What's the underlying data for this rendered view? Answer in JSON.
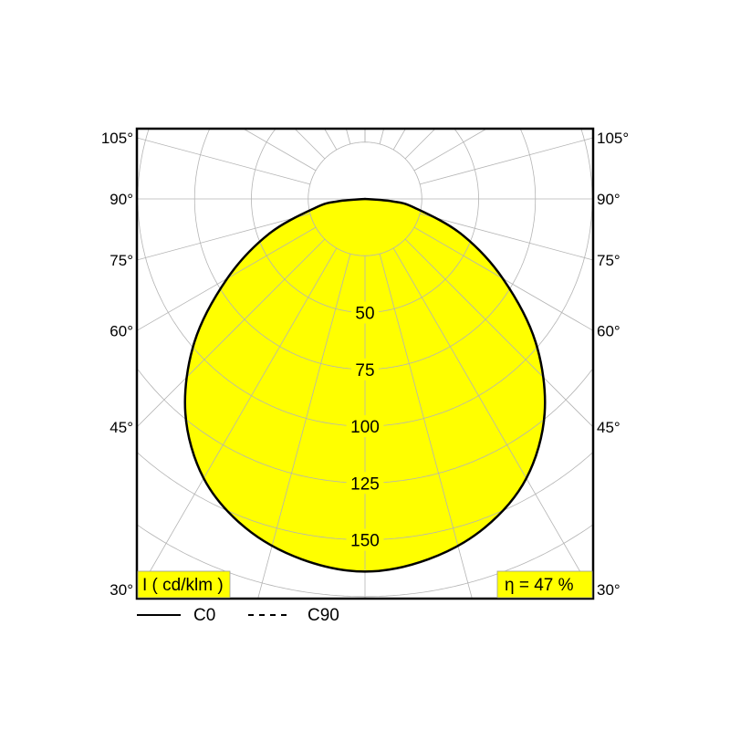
{
  "chart_data": {
    "type": "polar",
    "unit_label": "I ( cd/klm )",
    "efficiency_label": "η = 47 %",
    "radial_ticks": [
      25,
      50,
      75,
      100,
      125,
      150,
      175,
      200
    ],
    "radial_tick_labels": [
      "50",
      "75",
      "100",
      "125",
      "150"
    ],
    "radial_tick_label_values": [
      50,
      75,
      100,
      125,
      150
    ],
    "angle_tick_labels": [
      "105°",
      "90°",
      "75°",
      "60°",
      "45°",
      "30°"
    ],
    "angle_tick_values": [
      105,
      90,
      75,
      60,
      45,
      30
    ],
    "angle_step": 15,
    "grid": true,
    "legend_placement": "bottom-left",
    "series": [
      {
        "name": "C0",
        "style": "solid",
        "angles": [
          0,
          10,
          20,
          30,
          40,
          50,
          60,
          70,
          80,
          85,
          90
        ],
        "values": [
          164,
          161,
          154,
          142,
          123,
          98,
          70,
          45,
          22,
          12,
          0
        ]
      },
      {
        "name": "C90",
        "style": "dashed",
        "angles": [
          0,
          10,
          20,
          30,
          40,
          50,
          60,
          70,
          80,
          85,
          90
        ],
        "values": [
          164,
          161,
          154,
          142,
          123,
          98,
          70,
          45,
          22,
          12,
          0
        ]
      }
    ],
    "colors": {
      "fill": "#ffff00",
      "curve": "#000000",
      "grid": "#b4b4b4",
      "label_box": "#ffff00"
    }
  }
}
